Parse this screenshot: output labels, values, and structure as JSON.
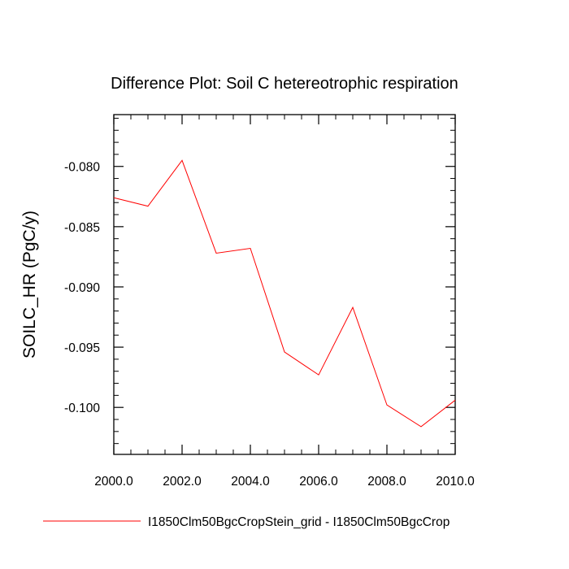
{
  "chart_data": {
    "type": "line",
    "title": "Difference Plot: Soil C hetereotrophic respiration",
    "xlabel": "",
    "ylabel": "SOILC_HR  (PgC/y)",
    "xlim": [
      2000,
      2010
    ],
    "ylim": [
      -0.1039,
      -0.0757
    ],
    "x_ticks": [
      2000,
      2002,
      2004,
      2006,
      2008,
      2010
    ],
    "x_tick_labels": [
      "2000.0",
      "2002.0",
      "2004.0",
      "2006.0",
      "2008.0",
      "2010.0"
    ],
    "y_ticks": [
      -0.08,
      -0.085,
      -0.09,
      -0.095,
      -0.1
    ],
    "y_tick_labels": [
      "-0.080",
      "-0.085",
      "-0.090",
      "-0.095",
      "-0.100"
    ],
    "grid": false,
    "legend_position": "bottom",
    "series": [
      {
        "name": "I1850Clm50BgcCropStein_grid - I1850Clm50BgcCrop",
        "color": "#ff0000",
        "x": [
          2000,
          2001,
          2002,
          2003,
          2004,
          2005,
          2006,
          2007,
          2008,
          2009,
          2010
        ],
        "y": [
          -0.0826,
          -0.0833,
          -0.0795,
          -0.0872,
          -0.0868,
          -0.0954,
          -0.0973,
          -0.0917,
          -0.0998,
          -0.1016,
          -0.0994
        ]
      }
    ]
  }
}
